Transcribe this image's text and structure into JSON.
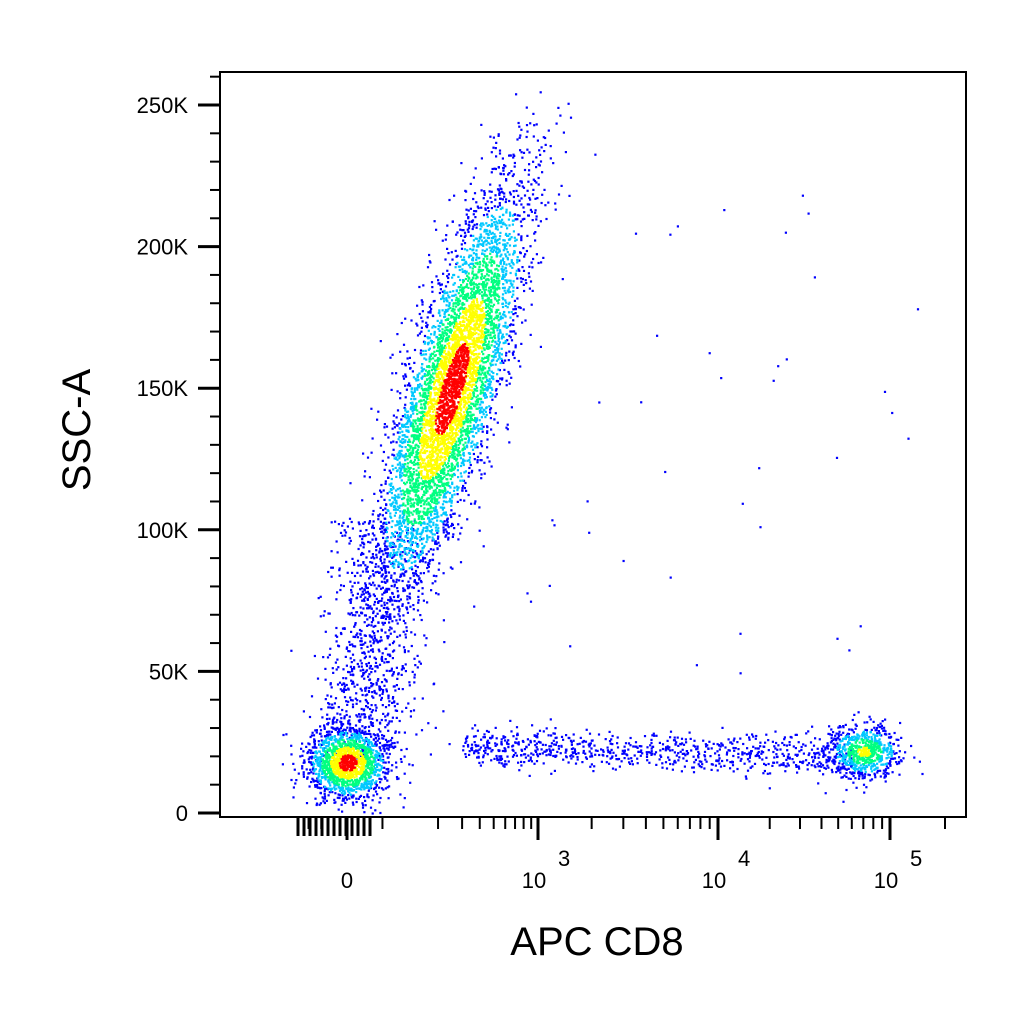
{
  "chart_data": {
    "type": "scatter",
    "subtype": "flow-cytometry density dot plot",
    "title": "",
    "xlabel": "APC CD8",
    "ylabel": "SSC-A",
    "x_scale": "biexponential",
    "y_scale": "linear",
    "xlim": [
      -150,
      200000
    ],
    "ylim": [
      0,
      262144
    ],
    "y_ticks": [
      {
        "value": 0,
        "label": "0"
      },
      {
        "value": 50000,
        "label": "50K"
      },
      {
        "value": 100000,
        "label": "100K"
      },
      {
        "value": 150000,
        "label": "150K"
      },
      {
        "value": 200000,
        "label": "200K"
      },
      {
        "value": 250000,
        "label": "250K"
      }
    ],
    "x_ticks": [
      {
        "value": 0,
        "base": "0",
        "exp": ""
      },
      {
        "value": 1000,
        "base": "10",
        "exp": "3"
      },
      {
        "value": 10000,
        "base": "10",
        "exp": "4"
      },
      {
        "value": 100000,
        "base": "10",
        "exp": "5"
      }
    ],
    "populations": [
      {
        "name": "CD8-negative cells with high side scatter",
        "x_center": 250,
        "x_spread": 120,
        "y_center": 150000,
        "y_range": [
          20000,
          255000
        ],
        "tilt": "x increases with y",
        "relative_count": 0.62
      },
      {
        "name": "CD8-negative cells with low side scatter",
        "x_center": 0,
        "x_spread": 60,
        "y_center": 18000,
        "y_range": [
          5000,
          45000
        ],
        "relative_count": 0.18
      },
      {
        "name": "CD8-positive cells with low side scatter",
        "x_center": 70000,
        "x_spread": 0.12,
        "y_center": 22000,
        "y_range": [
          8000,
          45000
        ],
        "relative_count": 0.08
      },
      {
        "name": "intermediate CD8 cells with low side scatter",
        "x_range": [
          300,
          60000
        ],
        "y_center": 24000,
        "y_range": [
          10000,
          35000
        ],
        "relative_count": 0.09
      }
    ],
    "color_scale": [
      "#0000ff",
      "#00c8ff",
      "#00ff80",
      "#ffff00",
      "#ff0000"
    ],
    "grid": false,
    "legend": "none"
  }
}
